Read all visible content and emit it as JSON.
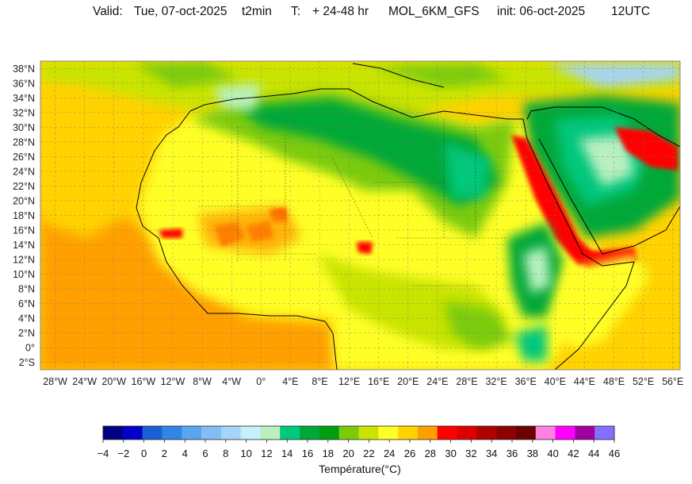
{
  "header": {
    "valid_label": "Valid:",
    "valid_date": "Tue, 07-oct-2025",
    "variable": "t2min",
    "t_label": "T:",
    "range": "+ 24-48 hr",
    "model": "MOL_6KM_GFS",
    "init": "init: 06-oct-2025",
    "run": "12UTC"
  },
  "map": {
    "lat_labels": [
      "38°N",
      "36°N",
      "34°N",
      "32°N",
      "30°N",
      "28°N",
      "26°N",
      "24°N",
      "22°N",
      "20°N",
      "18°N",
      "16°N",
      "14°N",
      "12°N",
      "10°N",
      "8°N",
      "6°N",
      "4°N",
      "2°N",
      "0°",
      "2°S"
    ],
    "lon_labels": [
      "28°W",
      "24°W",
      "20°W",
      "16°W",
      "12°W",
      "8°W",
      "4°W",
      "0°",
      "4°E",
      "8°E",
      "12°E",
      "16°E",
      "20°E",
      "24°E",
      "28°E",
      "32°E",
      "36°E",
      "40°E",
      "44°E",
      "48°E",
      "52°E",
      "56°E"
    ],
    "lat_range": [
      -3,
      39
    ],
    "lon_range": [
      -30,
      57
    ]
  },
  "legend": {
    "title": "Température(°C)",
    "ticks": [
      "−4",
      "−2",
      "0",
      "2",
      "4",
      "6",
      "8",
      "10",
      "12",
      "14",
      "16",
      "18",
      "20",
      "22",
      "24",
      "26",
      "28",
      "30",
      "32",
      "34",
      "36",
      "38",
      "40",
      "42",
      "44",
      "46"
    ],
    "colors": [
      "#000080",
      "#0000c8",
      "#1a5fd6",
      "#2f86e6",
      "#5aa5ef",
      "#84bdf3",
      "#a6d4f7",
      "#c6f1fb",
      "#b8f0c0",
      "#00c87c",
      "#00a838",
      "#009d12",
      "#7ccb0a",
      "#c8e400",
      "#ffff28",
      "#ffd200",
      "#ffa000",
      "#ff0000",
      "#dc0000",
      "#b00000",
      "#8c0000",
      "#6c0000",
      "#ff80e0",
      "#ff00ff",
      "#a000a0",
      "#8470ff"
    ]
  }
}
